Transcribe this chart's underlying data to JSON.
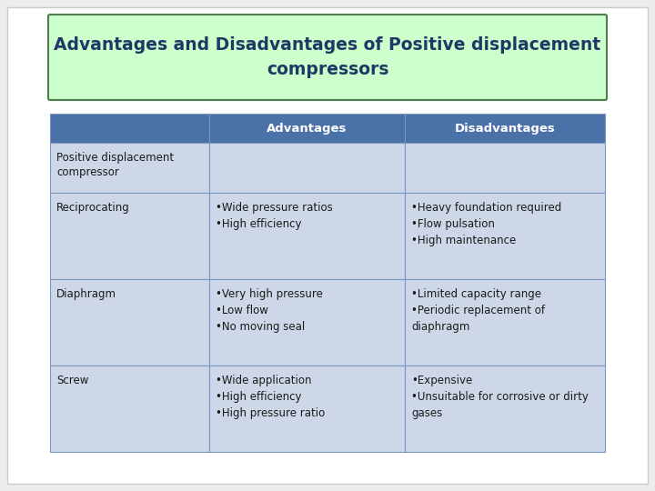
{
  "title": "Advantages and Disadvantages of Positive displacement\ncompressors",
  "title_bg": "#ccffcc",
  "title_border": "#4d7c4d",
  "header_bg": "#4a72a8",
  "header_text_color": "#ffffff",
  "header_labels": [
    "Advantages",
    "Disadvantages"
  ],
  "row_bg": "#cdd7e8",
  "border_color": "#7a96c2",
  "rows": [
    {
      "label": "Positive displacement\ncompressor",
      "advantages": "",
      "disadvantages": ""
    },
    {
      "label": "Reciprocating",
      "advantages": "•Wide pressure ratios\n•High efficiency",
      "disadvantages": "•Heavy foundation required\n•Flow pulsation\n•High maintenance"
    },
    {
      "label": "Diaphragm",
      "advantages": "•Very high pressure\n•Low flow\n•No moving seal",
      "disadvantages": "•Limited capacity range\n•Periodic replacement of\ndiaphragm"
    },
    {
      "label": "Screw",
      "advantages": "•Wide application\n•High efficiency\n•High pressure ratio",
      "disadvantages": "•Expensive\n•Unsuitable for corrosive or dirty\ngases"
    }
  ],
  "fig_bg": "#ececec",
  "slide_bg": "#ffffff",
  "font_size": 8.5,
  "header_font_size": 9.5,
  "title_font_size": 13.5,
  "title_color": "#1f3864",
  "text_color": "#1a1a1a"
}
